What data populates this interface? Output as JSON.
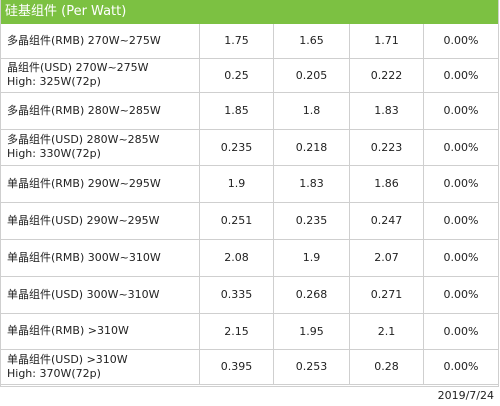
{
  "header": {
    "title": "硅基组件 (Per Watt)"
  },
  "rows": [
    {
      "name": [
        "多晶组件(RMB) 270W~275W"
      ],
      "v1": "1.75",
      "v2": "1.65",
      "v3": "1.71",
      "change": "0.00%"
    },
    {
      "name": [
        "晶组件(USD) 270W~275W",
        "High: 325W(72p)"
      ],
      "v1": "0.25",
      "v2": "0.205",
      "v3": "0.222",
      "change": "0.00%"
    },
    {
      "name": [
        "多晶组件(RMB) 280W~285W"
      ],
      "v1": "1.85",
      "v2": "1.8",
      "v3": "1.83",
      "change": "0.00%"
    },
    {
      "name": [
        "多晶组件(USD) 280W~285W",
        "High: 330W(72p)"
      ],
      "v1": "0.235",
      "v2": "0.218",
      "v3": "0.223",
      "change": "0.00%"
    },
    {
      "name": [
        "单晶组件(RMB) 290W~295W"
      ],
      "v1": "1.9",
      "v2": "1.83",
      "v3": "1.86",
      "change": "0.00%"
    },
    {
      "name": [
        "单晶组件(USD) 290W~295W"
      ],
      "v1": "0.251",
      "v2": "0.235",
      "v3": "0.247",
      "change": "0.00%"
    },
    {
      "name": [
        "单晶组件(RMB) 300W~310W"
      ],
      "v1": "2.08",
      "v2": "1.9",
      "v3": "2.07",
      "change": "0.00%"
    },
    {
      "name": [
        "单晶组件(USD) 300W~310W"
      ],
      "v1": "0.335",
      "v2": "0.268",
      "v3": "0.271",
      "change": "0.00%"
    },
    {
      "name": [
        "单晶组件(RMB) >310W"
      ],
      "v1": "2.15",
      "v2": "1.95",
      "v3": "2.1",
      "change": "0.00%"
    },
    {
      "name": [
        "单晶组件(USD) >310W",
        "High: 370W(72p)"
      ],
      "v1": "0.395",
      "v2": "0.253",
      "v3": "0.28",
      "change": "0.00%"
    }
  ],
  "footer": {
    "date": "2019/7/24"
  }
}
